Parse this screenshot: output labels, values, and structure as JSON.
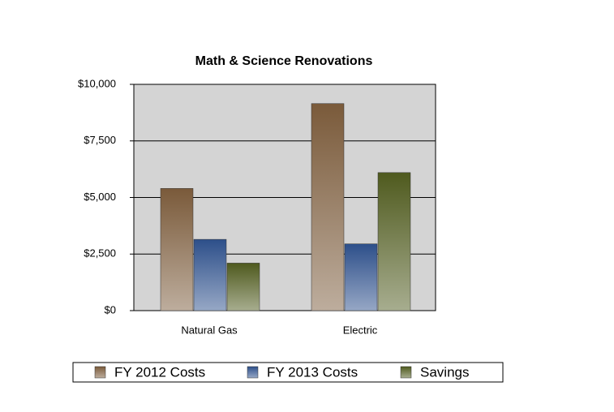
{
  "chart_data": {
    "type": "bar",
    "title": "Math & Science Renovations",
    "categories": [
      "Natural Gas",
      "Electric"
    ],
    "series": [
      {
        "name": "FY 2012 Costs",
        "color": "#7a5a3a",
        "values": [
          5400,
          9150
        ]
      },
      {
        "name": "FY 2013 Costs",
        "color": "#2d4f8a",
        "values": [
          3150,
          2950
        ]
      },
      {
        "name": "Savings",
        "color": "#4f5a1e",
        "values": [
          2100,
          6100
        ]
      }
    ],
    "ylim": [
      0,
      10000
    ],
    "yticks": [
      {
        "value": 0,
        "label": "$0"
      },
      {
        "value": 2500,
        "label": "$2,500"
      },
      {
        "value": 5000,
        "label": "$5,000"
      },
      {
        "value": 7500,
        "label": "$7,500"
      },
      {
        "value": 10000,
        "label": "$10,000"
      }
    ],
    "grid": true,
    "legend": "bottom"
  }
}
